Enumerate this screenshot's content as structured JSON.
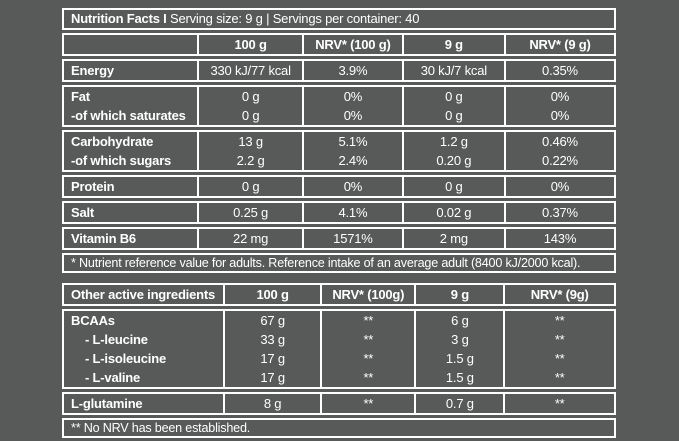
{
  "colors": {
    "background": "#575a58",
    "border": "#ffffff",
    "text": "#ffffff"
  },
  "table1": {
    "title_bold": "Nutrition Facts I",
    "title_rest": "Serving size: 9 g | Servings per container: 40",
    "columns": [
      "",
      "100 g",
      "NRV* (100 g)",
      "9 g",
      "NRV* (9 g)"
    ],
    "groups": [
      {
        "rows": [
          {
            "label": "Energy",
            "indent": false,
            "values": [
              "330 kJ/77 kcal",
              "3.9%",
              "30 kJ/7 kcal",
              "0.35%"
            ]
          }
        ]
      },
      {
        "rows": [
          {
            "label": "Fat",
            "indent": false,
            "values": [
              "0 g",
              "0%",
              "0 g",
              "0%"
            ]
          },
          {
            "label": "-of which saturates",
            "indent": false,
            "values": [
              "0 g",
              "0%",
              "0 g",
              "0%"
            ]
          }
        ]
      },
      {
        "rows": [
          {
            "label": "Carbohydrate",
            "indent": false,
            "values": [
              "13 g",
              "5.1%",
              "1.2 g",
              "0.46%"
            ]
          },
          {
            "label": "-of which sugars",
            "indent": false,
            "values": [
              "2.2 g",
              "2.4%",
              "0.20 g",
              "0.22%"
            ]
          }
        ]
      },
      {
        "rows": [
          {
            "label": "Protein",
            "indent": false,
            "values": [
              "0 g",
              "0%",
              "0 g",
              "0%"
            ]
          }
        ]
      },
      {
        "rows": [
          {
            "label": "Salt",
            "indent": false,
            "values": [
              "0.25 g",
              "4.1%",
              "0.02 g",
              "0.37%"
            ]
          }
        ]
      },
      {
        "rows": [
          {
            "label": "Vitamin B6",
            "indent": false,
            "values": [
              "22 mg",
              "1571%",
              "2 mg",
              "143%"
            ]
          }
        ]
      }
    ],
    "footnote": "* Nutrient reference value for adults. Reference intake of an average adult (8400 kJ/2000 kcal)."
  },
  "table2": {
    "columns": [
      "Other active ingredients",
      "100 g",
      "NRV* (100g)",
      "9 g",
      "NRV* (9g)"
    ],
    "groups": [
      {
        "rows": [
          {
            "label": "BCAAs",
            "indent": false,
            "values": [
              "67 g",
              "**",
              "6 g",
              "**"
            ]
          },
          {
            "label": "- L-leucine",
            "indent": true,
            "values": [
              "33 g",
              "**",
              "3 g",
              "**"
            ]
          },
          {
            "label": "- L-isoleucine",
            "indent": true,
            "values": [
              "17 g",
              "**",
              "1.5 g",
              "**"
            ]
          },
          {
            "label": "- L-valine",
            "indent": true,
            "values": [
              "17 g",
              "**",
              "1.5 g",
              "**"
            ]
          }
        ]
      },
      {
        "rows": [
          {
            "label": "L-glutamine",
            "indent": false,
            "values": [
              "8 g",
              "**",
              "0.7 g",
              "**"
            ]
          }
        ]
      }
    ],
    "footnote": "** No NRV has been established."
  }
}
